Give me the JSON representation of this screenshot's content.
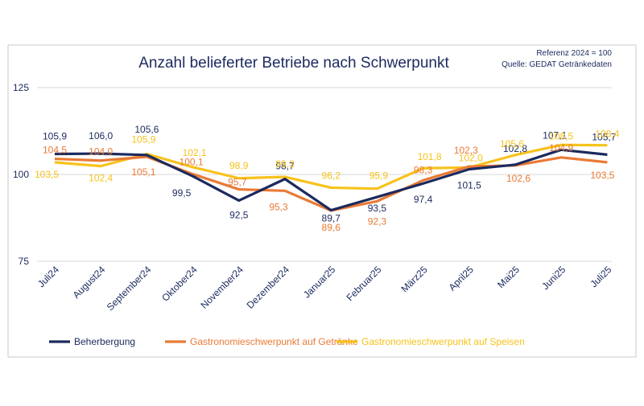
{
  "chart_data": {
    "type": "line",
    "title": "Anzahl belieferter Betriebe nach Schwerpunkt",
    "note": [
      "Referenz 2024 = 100",
      "Quelle: GEDAT Getränkedaten"
    ],
    "categories": [
      "Juli24",
      "August24",
      "September24",
      "Oktober24",
      "November24",
      "Dezember24",
      "Januar25",
      "Februar25",
      "März25",
      "April25",
      "Mai25",
      "Juni25",
      "Juli25"
    ],
    "yticks": [
      "125",
      "100",
      "75"
    ],
    "ylim": [
      75,
      125
    ],
    "series": [
      {
        "name": "Beherbergung",
        "color": "#1b2a5e",
        "values": [
          105.9,
          106.0,
          105.6,
          99.5,
          92.5,
          98.7,
          89.7,
          93.5,
          97.4,
          101.5,
          102.8,
          107.1,
          105.7
        ],
        "labels": [
          "105,9",
          "106,0",
          "105,6",
          "99,5",
          "92,5",
          "98,7",
          "89,7",
          "93,5",
          "97,4",
          "101,5",
          "102,8",
          "107,1",
          "105,7"
        ]
      },
      {
        "name": "Gastronomieschwerpunkt auf Getränke",
        "color": "#ea7a35",
        "values": [
          104.5,
          104.0,
          105.1,
          100.1,
          95.7,
          95.3,
          89.6,
          92.3,
          98.3,
          102.3,
          102.6,
          104.9,
          103.5
        ],
        "labels": [
          "104,5",
          "104,0",
          "105,1",
          "100,1",
          "95,7",
          "95,3",
          "89,6",
          "92,3",
          "98,3",
          "102,3",
          "102,6",
          "104,9",
          "103,5"
        ]
      },
      {
        "name": "Gastronomieschwerpunkt auf Speisen",
        "color": "#f7c21b",
        "values": [
          103.5,
          102.4,
          105.9,
          102.1,
          98.9,
          99.3,
          96.2,
          95.9,
          101.8,
          102.0,
          105.6,
          108.5,
          108.4
        ],
        "labels": [
          "103,5",
          "102,4",
          "105,9",
          "102,1",
          "98,9",
          "99,3",
          "96,2",
          "95,9",
          "101,8",
          "102,0",
          "105,6",
          "108,5",
          "108,4"
        ]
      }
    ]
  }
}
